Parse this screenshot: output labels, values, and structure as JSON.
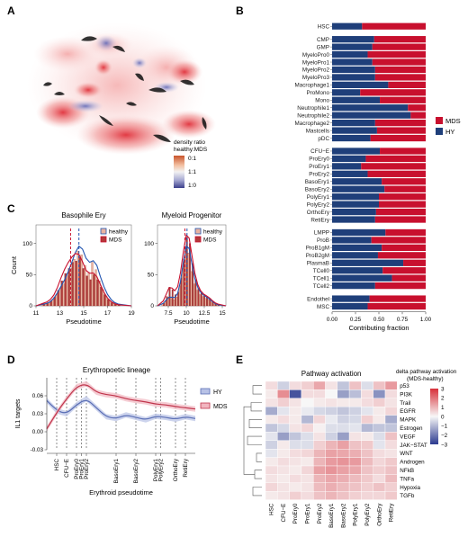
{
  "panel_letters": {
    "a": "A",
    "b": "B",
    "c": "C",
    "d": "D",
    "e": "E"
  },
  "colors": {
    "mds": "#c8102e",
    "hy": "#1f3f7a",
    "healthy_line": "#2255b0",
    "heat_pos": "#d7303a",
    "heat_neg": "#2b3a8f"
  },
  "panelA": {
    "legend_title_1": "density ratio",
    "legend_title_2": "healthy:MDS",
    "legend_ticks": [
      "0:1",
      "1:1",
      "1:0"
    ]
  },
  "chart_data": [
    {
      "type": "bar",
      "orientation": "horizontal",
      "stacked": true,
      "panel": "B",
      "xlabel": "Contributing fraction",
      "xlim": [
        0,
        1
      ],
      "xticks": [
        "0.00",
        "0.25",
        "0.50",
        "0.75",
        "1.00"
      ],
      "legend": [
        "MDS",
        "HY"
      ],
      "legend_position": "right",
      "groups": [
        {
          "categories": [
            "HSC"
          ],
          "hy": [
            0.32
          ]
        },
        {
          "categories": [
            "CMP",
            "GMP",
            "MyeloPro0",
            "MyeloPro1",
            "MyeloPro2",
            "MyeloPro3",
            "Macrophage1",
            "ProMono",
            "Mono",
            "Neutrophile1",
            "Neutrophile2",
            "Macrophage2",
            "Mastcells",
            "pDC"
          ],
          "hy": [
            0.45,
            0.43,
            0.38,
            0.43,
            0.46,
            0.46,
            0.6,
            0.3,
            0.51,
            0.81,
            0.84,
            0.46,
            0.48,
            0.41
          ]
        },
        {
          "categories": [
            "CFU−E",
            "ProEry0",
            "ProEry1",
            "ProEry2",
            "BasoEry1",
            "BasoEry2",
            "PolyEry1",
            "PolyEry2",
            "OrthoEry",
            "RetiEry"
          ],
          "hy": [
            0.51,
            0.36,
            0.31,
            0.38,
            0.53,
            0.56,
            0.5,
            0.5,
            0.47,
            0.46
          ]
        },
        {
          "categories": [
            "LMPP",
            "ProB",
            "ProB1gM",
            "ProB2gM",
            "PlasmaB",
            "TCell0",
            "TCell1",
            "TCell2"
          ],
          "hy": [
            0.57,
            0.42,
            0.53,
            0.49,
            0.76,
            0.54,
            0.64,
            0.46
          ]
        },
        {
          "categories": [
            "Endothel",
            "MSC"
          ],
          "hy": [
            0.4,
            0.38
          ]
        }
      ]
    },
    {
      "type": "histogram",
      "panel": "C",
      "title": "Basophile Ery",
      "xlabel": "Pseudotime",
      "ylabel": "Count",
      "xlim": [
        11,
        19
      ],
      "ylim": [
        0,
        130
      ],
      "xticks": [
        11,
        13,
        15,
        17,
        19
      ],
      "yticks": [
        0,
        50,
        100
      ],
      "legend": [
        "healthy",
        "MDS"
      ],
      "bin_centers": [
        11.6,
        11.9,
        12.2,
        12.5,
        12.8,
        13.1,
        13.4,
        13.7,
        14.0,
        14.3,
        14.6,
        14.9,
        15.2,
        15.5,
        15.8,
        16.1,
        16.4,
        16.7,
        17.0,
        17.3,
        17.6,
        17.9
      ],
      "healthy_counts": [
        2,
        3,
        5,
        10,
        18,
        28,
        35,
        48,
        60,
        75,
        88,
        82,
        65,
        54,
        70,
        58,
        40,
        26,
        15,
        8,
        4,
        2
      ],
      "mds_counts": [
        3,
        5,
        8,
        14,
        25,
        40,
        52,
        60,
        70,
        72,
        78,
        60,
        48,
        42,
        50,
        42,
        30,
        18,
        10,
        5,
        3,
        1
      ],
      "healthy_median": 14.6,
      "mds_median": 13.9,
      "healthy_density_peak": 14.5,
      "mds_density_peak": 14.0
    },
    {
      "type": "histogram",
      "panel": "C",
      "title": "Myeloid Progenitor",
      "xlabel": "Pseudotime",
      "ylabel": "",
      "xlim": [
        6.0,
        15.5
      ],
      "ylim": [
        0,
        130
      ],
      "xticks": [
        7.5,
        10.0,
        12.5,
        15.0
      ],
      "yticks": [
        0,
        50,
        100
      ],
      "legend": [
        "healthy",
        "MDS"
      ],
      "bin_centers": [
        6.8,
        7.2,
        7.6,
        8.0,
        8.4,
        8.8,
        9.2,
        9.6,
        10.0,
        10.4,
        10.8,
        11.2,
        11.6,
        12.0,
        12.4,
        12.8,
        13.2,
        13.6,
        14.0,
        14.4
      ],
      "healthy_counts": [
        2,
        8,
        14,
        12,
        10,
        14,
        32,
        60,
        95,
        85,
        55,
        35,
        25,
        18,
        15,
        12,
        10,
        6,
        3,
        1
      ],
      "mds_counts": [
        4,
        15,
        30,
        26,
        18,
        22,
        45,
        75,
        110,
        100,
        68,
        42,
        28,
        20,
        16,
        14,
        12,
        7,
        4,
        2
      ],
      "healthy_median": 10.1,
      "mds_median": 9.8
    },
    {
      "type": "line",
      "panel": "D",
      "title": "Erythropoetic lineage",
      "xlabel": "Erythroid pseudotime",
      "ylabel": "IL1 targets",
      "ylim": [
        -0.03,
        0.09
      ],
      "yticks": [
        "-0.03",
        "0.00",
        "0.03",
        "0.06"
      ],
      "stages": [
        "HSC",
        "CFU−E",
        "ProEry0",
        "ProEry1",
        "ProEry2",
        "BasoEry1",
        "BasoEry2",
        "PolyEry1",
        "PolyEry2",
        "OrthoEry",
        "RetiEry"
      ],
      "stage_positions": [
        0.5,
        1.0,
        1.5,
        1.75,
        2.0,
        3.5,
        4.5,
        5.5,
        5.75,
        6.5,
        7.0
      ],
      "x": [
        0.0,
        0.5,
        1.0,
        1.5,
        2.0,
        2.5,
        3.0,
        3.5,
        4.0,
        4.5,
        5.0,
        5.5,
        6.0,
        6.5,
        7.0,
        7.5
      ],
      "series": [
        {
          "name": "HY",
          "values": [
            0.052,
            0.035,
            0.03,
            0.045,
            0.055,
            0.04,
            0.025,
            0.022,
            0.028,
            0.024,
            0.02,
            0.026,
            0.024,
            0.021,
            0.025,
            0.022
          ]
        },
        {
          "name": "MDS",
          "values": [
            0.005,
            0.032,
            0.055,
            0.075,
            0.08,
            0.066,
            0.062,
            0.06,
            0.055,
            0.052,
            0.05,
            0.046,
            0.045,
            0.042,
            0.04,
            0.038
          ]
        }
      ]
    },
    {
      "type": "heatmap",
      "panel": "E",
      "title": "Pathway activation",
      "colorbar_title_1": "delta pathway activation",
      "colorbar_title_2": "(MDS-healthy)",
      "colorbar_ticks": [
        "3",
        "2",
        "1",
        "0",
        "−1",
        "−2",
        "−3"
      ],
      "vrange": [
        -3,
        3
      ],
      "columns": [
        "HSC",
        "CFU−E",
        "ProEry0",
        "ProEry1",
        "ProEry2",
        "BasoEry1",
        "BasoEry2",
        "PolyEry1",
        "PolyEry2",
        "OrthoEry",
        "RetiEry"
      ],
      "rows": [
        "p53",
        "PI3K",
        "Trail",
        "EGFR",
        "MAPK",
        "Estrogen",
        "VEGF",
        "JAK−STAT",
        "WNT",
        "Androgen",
        "NFkB",
        "TNFa",
        "Hypoxia",
        "TGFb"
      ],
      "values": [
        [
          0.4,
          -0.6,
          0.4,
          0.6,
          1.2,
          0.3,
          -0.8,
          0.8,
          -0.4,
          0.8,
          1.4
        ],
        [
          0.2,
          1.6,
          -2.6,
          0.4,
          0.4,
          0.0,
          -1.4,
          -0.9,
          0.4,
          -1.6,
          0.4
        ],
        [
          0.3,
          0.6,
          0.3,
          0.0,
          0.2,
          0.3,
          0.2,
          0.2,
          0.4,
          0.6,
          0.3
        ],
        [
          -1.2,
          -0.3,
          0.2,
          -0.2,
          -0.5,
          -0.6,
          -0.8,
          -0.6,
          -0.3,
          0.2,
          0.5
        ],
        [
          0.2,
          0.4,
          0.2,
          -1.0,
          0.5,
          -0.2,
          -0.6,
          -0.5,
          0.6,
          0.2,
          -1.2
        ],
        [
          -0.8,
          -0.5,
          0.3,
          0.5,
          0.1,
          -0.4,
          -0.4,
          -0.3,
          -1.0,
          -0.8,
          -0.8
        ],
        [
          -0.3,
          -1.4,
          -0.8,
          -0.4,
          0.3,
          -0.6,
          -1.4,
          0.3,
          0.2,
          -0.4,
          0.8
        ],
        [
          -0.6,
          0.2,
          -0.4,
          -0.4,
          0.6,
          1.0,
          1.3,
          0.8,
          0.7,
          -0.3,
          0.4
        ],
        [
          -0.3,
          0.2,
          0.4,
          0.5,
          1.0,
          1.3,
          1.2,
          1.1,
          0.8,
          0.4,
          0.3
        ],
        [
          0.2,
          0.4,
          0.3,
          0.2,
          1.0,
          1.4,
          1.5,
          1.4,
          0.9,
          0.5,
          0.7
        ],
        [
          0.4,
          0.3,
          0.2,
          0.5,
          1.3,
          1.5,
          1.3,
          1.2,
          0.8,
          0.6,
          0.8
        ],
        [
          0.3,
          0.2,
          0.4,
          0.3,
          1.0,
          1.2,
          1.1,
          0.9,
          0.7,
          0.4,
          0.9
        ],
        [
          0.5,
          0.3,
          0.2,
          0.3,
          0.9,
          1.1,
          0.9,
          0.8,
          0.6,
          0.8,
          0.6
        ],
        [
          0.2,
          0.3,
          0.6,
          0.4,
          0.8,
          1.0,
          0.8,
          0.6,
          0.5,
          0.5,
          0.7
        ]
      ]
    }
  ]
}
